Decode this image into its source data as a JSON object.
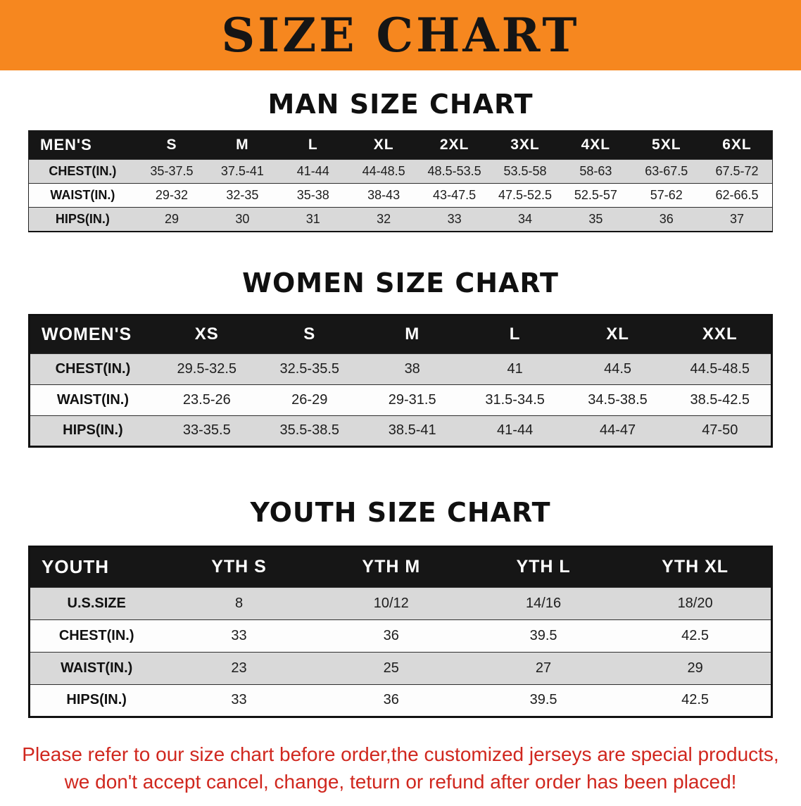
{
  "banner": {
    "title": "SIZE CHART",
    "bg_color": "#F6871F",
    "text_color": "#151515"
  },
  "sections": [
    {
      "heading": "MAN SIZE CHART",
      "table": {
        "corner": "MEN'S",
        "columns": [
          "S",
          "M",
          "L",
          "XL",
          "2XL",
          "3XL",
          "4XL",
          "5XL",
          "6XL"
        ],
        "rows": [
          {
            "label": "CHEST(IN.)",
            "values": [
              "35-37.5",
              "37.5-41",
              "41-44",
              "44-48.5",
              "48.5-53.5",
              "53.5-58",
              "58-63",
              "63-67.5",
              "67.5-72"
            ]
          },
          {
            "label": "WAIST(IN.)",
            "values": [
              "29-32",
              "32-35",
              "35-38",
              "38-43",
              "43-47.5",
              "47.5-52.5",
              "52.5-57",
              "57-62",
              "62-66.5"
            ]
          },
          {
            "label": "HIPS(IN.)",
            "values": [
              "29",
              "30",
              "31",
              "32",
              "33",
              "34",
              "35",
              "36",
              "37"
            ]
          }
        ]
      }
    },
    {
      "heading": "WOMEN SIZE CHART",
      "table": {
        "corner": "WOMEN'S",
        "columns": [
          "XS",
          "S",
          "M",
          "L",
          "XL",
          "XXL"
        ],
        "rows": [
          {
            "label": "CHEST(IN.)",
            "values": [
              "29.5-32.5",
              "32.5-35.5",
              "38",
              "41",
              "44.5",
              "44.5-48.5"
            ]
          },
          {
            "label": "WAIST(IN.)",
            "values": [
              "23.5-26",
              "26-29",
              "29-31.5",
              "31.5-34.5",
              "34.5-38.5",
              "38.5-42.5"
            ]
          },
          {
            "label": "HIPS(IN.)",
            "values": [
              "33-35.5",
              "35.5-38.5",
              "38.5-41",
              "41-44",
              "44-47",
              "47-50"
            ]
          }
        ]
      }
    },
    {
      "heading": "YOUTH SIZE CHART",
      "table": {
        "corner": "YOUTH",
        "columns": [
          "YTH S",
          "YTH M",
          "YTH L",
          "YTH XL"
        ],
        "rows": [
          {
            "label": "U.S.SIZE",
            "values": [
              "8",
              "10/12",
              "14/16",
              "18/20"
            ]
          },
          {
            "label": "CHEST(IN.)",
            "values": [
              "33",
              "36",
              "39.5",
              "42.5"
            ]
          },
          {
            "label": "WAIST(IN.)",
            "values": [
              "23",
              "25",
              "27",
              "29"
            ]
          },
          {
            "label": "HIPS(IN.)",
            "values": [
              "33",
              "36",
              "39.5",
              "42.5"
            ]
          }
        ]
      }
    }
  ],
  "disclaimer": {
    "lines": [
      "Please refer to our size chart before order,the customized jerseys are special products,",
      "we don't accept cancel, change, teturn or refund after order has been placed!"
    ],
    "color": "#d0271e"
  }
}
